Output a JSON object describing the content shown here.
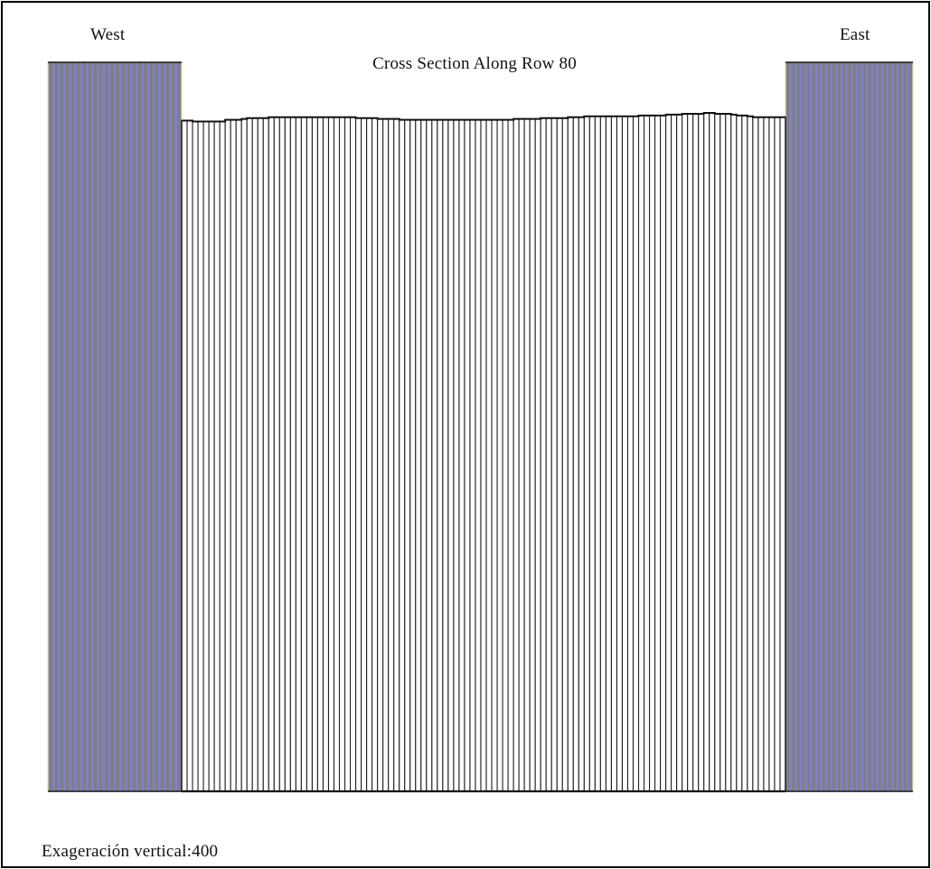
{
  "labels": {
    "west": "West",
    "east": "East",
    "title": "Cross Section Along Row 80",
    "vertical_exaggeration": "Exageración vertical:400"
  },
  "colors": {
    "inactive_fill": "#8080d0",
    "inactive_stripe": "#7f7f7f",
    "active_fill": "#ffffff",
    "active_stripe": "#222222",
    "outline": "#111111",
    "inactive_edge": "#e6e68a"
  },
  "section": {
    "west_inactive_columns": 24,
    "east_inactive_columns": 25,
    "active_columns": 111,
    "top_profile": [
      0.052,
      0.052,
      0.053,
      0.053,
      0.053,
      0.053,
      0.053,
      0.053,
      0.051,
      0.051,
      0.051,
      0.05,
      0.049,
      0.049,
      0.049,
      0.049,
      0.048,
      0.048,
      0.048,
      0.048,
      0.048,
      0.048,
      0.048,
      0.048,
      0.048,
      0.048,
      0.048,
      0.048,
      0.048,
      0.048,
      0.048,
      0.048,
      0.049,
      0.049,
      0.049,
      0.049,
      0.05,
      0.05,
      0.05,
      0.05,
      0.051,
      0.051,
      0.051,
      0.051,
      0.051,
      0.051,
      0.051,
      0.051,
      0.051,
      0.051,
      0.051,
      0.051,
      0.051,
      0.051,
      0.051,
      0.051,
      0.051,
      0.051,
      0.051,
      0.051,
      0.051,
      0.05,
      0.05,
      0.05,
      0.05,
      0.05,
      0.049,
      0.049,
      0.049,
      0.049,
      0.049,
      0.048,
      0.048,
      0.048,
      0.047,
      0.047,
      0.047,
      0.047,
      0.047,
      0.047,
      0.047,
      0.047,
      0.047,
      0.047,
      0.046,
      0.046,
      0.046,
      0.046,
      0.046,
      0.045,
      0.045,
      0.045,
      0.044,
      0.044,
      0.044,
      0.044,
      0.043,
      0.043,
      0.044,
      0.044,
      0.044,
      0.045,
      0.046,
      0.046,
      0.047,
      0.048,
      0.048,
      0.048,
      0.048,
      0.048,
      0.048
    ]
  }
}
